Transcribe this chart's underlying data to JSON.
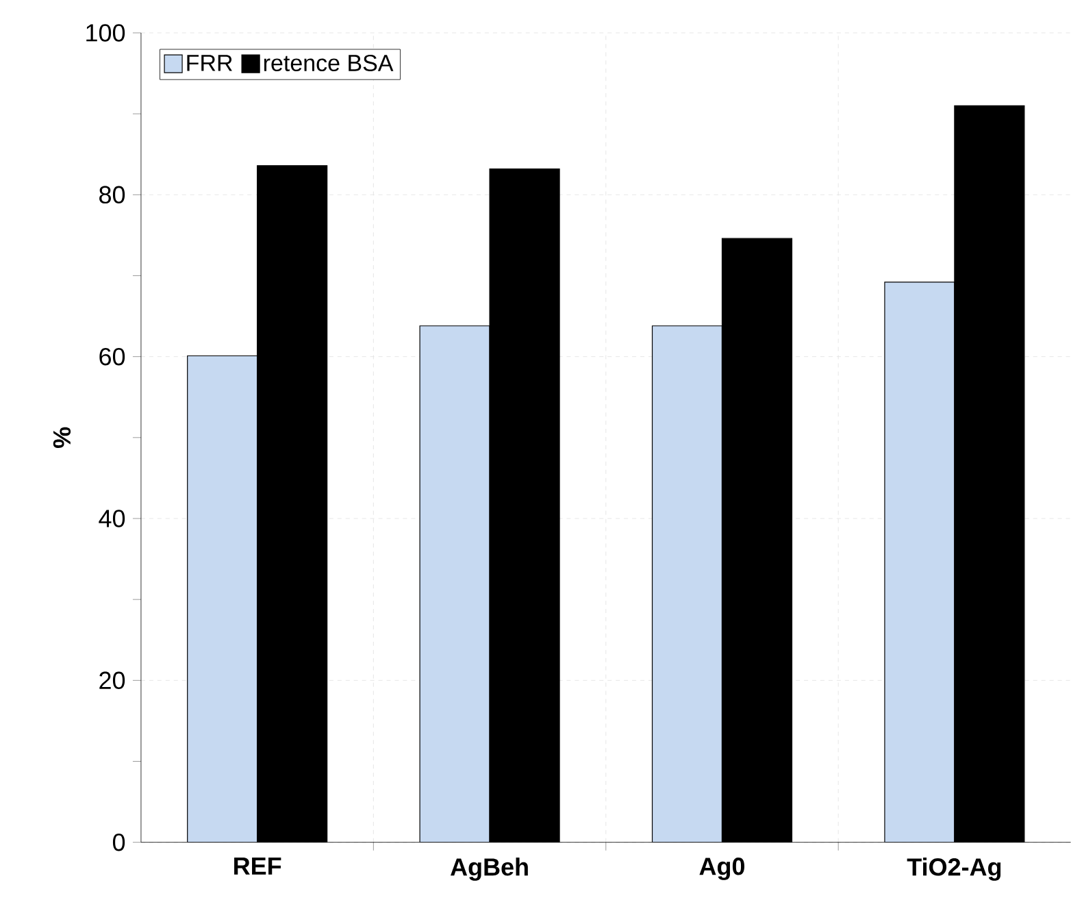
{
  "chart_data": {
    "type": "bar",
    "ylabel": "%",
    "categories": [
      "REF",
      "AgBeh",
      "Ag0",
      "TiO2-Ag"
    ],
    "series": [
      {
        "name": "FRR",
        "color": "#c6d9f1",
        "values": [
          60.1,
          63.8,
          63.8,
          69.2
        ]
      },
      {
        "name": "retence BSA",
        "color": "#000000",
        "values": [
          83.6,
          83.2,
          74.6,
          91.0
        ]
      }
    ],
    "ylim": [
      0,
      100
    ],
    "yticks": [
      0,
      20,
      40,
      60,
      80,
      100
    ],
    "grid": true,
    "legend": "top left"
  }
}
